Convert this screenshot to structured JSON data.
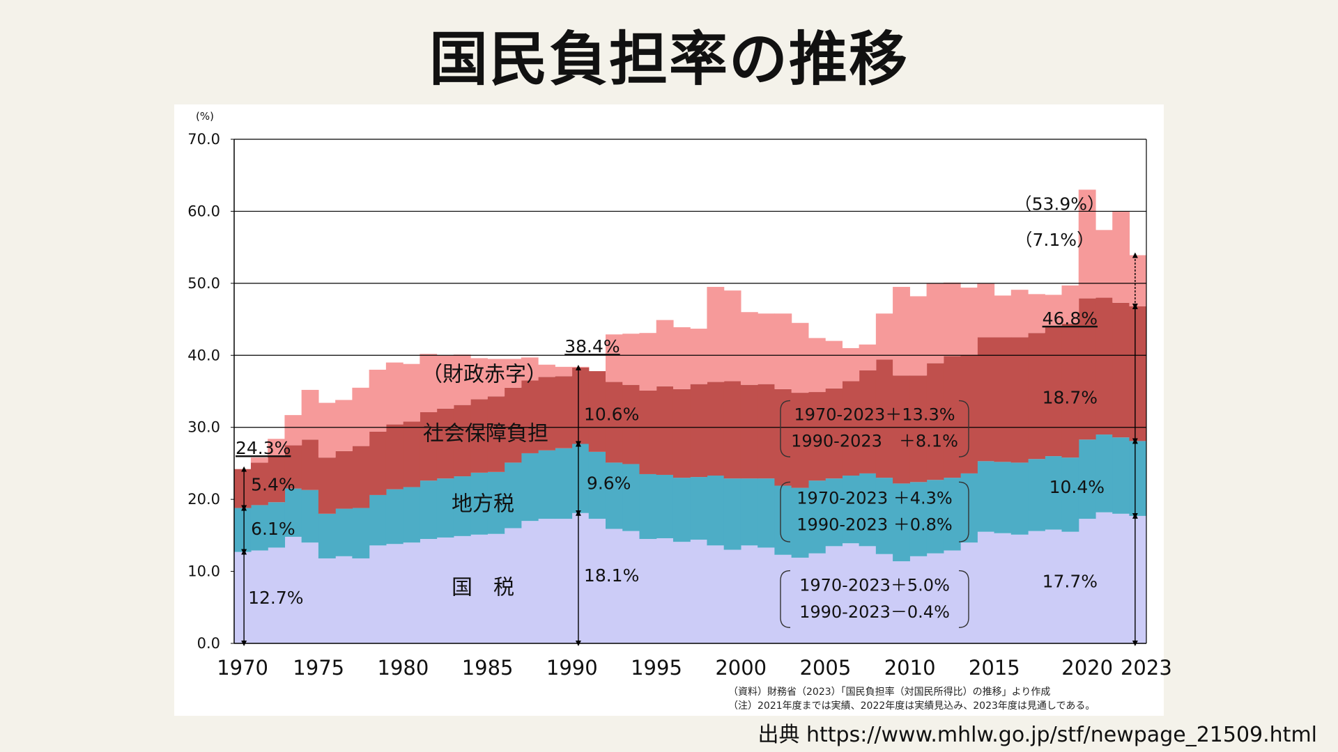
{
  "page": {
    "title": "国民負担率の推移",
    "source": "出典 https://www.mhlw.go.jp/stf/newpage_21509.html"
  },
  "colors": {
    "national_tax": "#ccccf7",
    "local_tax": "#4dadc6",
    "social_security": "#c0504d",
    "fiscal_deficit": "#f69a9a",
    "axis": "#000000",
    "grid": "#000000"
  },
  "chart_data": {
    "type": "area",
    "stacked": true,
    "title": "国民負担率の推移",
    "y_unit_label": "(%)",
    "ylim": [
      0,
      70
    ],
    "yticks": [
      "0.0",
      "10.0",
      "20.0",
      "30.0",
      "40.0",
      "50.0",
      "60.0",
      "70.0"
    ],
    "xticks": [
      "1970",
      "1975",
      "1980",
      "1985",
      "1990",
      "1995",
      "2000",
      "2005",
      "2010",
      "2015",
      "2020",
      "2023"
    ],
    "x": [
      1970,
      1971,
      1972,
      1973,
      1974,
      1975,
      1976,
      1977,
      1978,
      1979,
      1980,
      1981,
      1982,
      1983,
      1984,
      1985,
      1986,
      1987,
      1988,
      1989,
      1990,
      1991,
      1992,
      1993,
      1994,
      1995,
      1996,
      1997,
      1998,
      1999,
      2000,
      2001,
      2002,
      2003,
      2004,
      2005,
      2006,
      2007,
      2008,
      2009,
      2010,
      2011,
      2012,
      2013,
      2014,
      2015,
      2016,
      2017,
      2018,
      2019,
      2020,
      2021,
      2022,
      2023
    ],
    "series": [
      {
        "name": "国　税",
        "key": "national_tax",
        "values": [
          12.7,
          12.9,
          13.3,
          14.8,
          14.0,
          11.8,
          12.1,
          11.8,
          13.6,
          13.8,
          14.0,
          14.5,
          14.7,
          14.9,
          15.1,
          15.2,
          16.0,
          17.0,
          17.3,
          17.3,
          18.1,
          17.3,
          15.9,
          15.6,
          14.5,
          14.6,
          14.1,
          14.4,
          13.6,
          13.0,
          13.6,
          13.3,
          12.3,
          11.9,
          12.5,
          13.5,
          13.9,
          13.5,
          12.4,
          11.4,
          12.1,
          12.5,
          12.9,
          14.0,
          15.5,
          15.3,
          15.1,
          15.6,
          15.8,
          15.5,
          17.3,
          18.2,
          18.0,
          17.7
        ]
      },
      {
        "name": "地方税",
        "key": "local_tax",
        "values": [
          6.1,
          6.3,
          6.3,
          6.7,
          7.3,
          6.2,
          6.6,
          7.0,
          7.0,
          7.6,
          7.7,
          8.1,
          8.2,
          8.3,
          8.6,
          8.6,
          9.1,
          9.4,
          9.5,
          9.8,
          9.6,
          9.3,
          9.2,
          9.3,
          9.0,
          8.8,
          8.9,
          8.7,
          9.7,
          9.9,
          9.3,
          9.6,
          9.6,
          9.7,
          10.1,
          9.4,
          9.4,
          10.1,
          10.6,
          10.8,
          10.3,
          10.2,
          10.1,
          9.6,
          9.8,
          9.9,
          10.0,
          10.0,
          10.2,
          10.3,
          11.0,
          10.8,
          10.6,
          10.4
        ]
      },
      {
        "name": "社会保障負担",
        "key": "social_security",
        "values": [
          5.4,
          5.9,
          6.4,
          6.0,
          7.0,
          7.8,
          8.0,
          8.6,
          8.8,
          9.0,
          9.1,
          9.5,
          9.7,
          9.9,
          10.2,
          10.5,
          10.4,
          10.1,
          10.2,
          10.0,
          10.6,
          11.2,
          11.2,
          11.0,
          11.6,
          12.3,
          12.3,
          12.9,
          13.0,
          13.5,
          13.0,
          13.1,
          13.4,
          13.2,
          12.3,
          12.5,
          13.1,
          14.3,
          16.4,
          15.0,
          14.8,
          16.2,
          16.9,
          16.4,
          17.2,
          17.3,
          17.4,
          17.5,
          18.1,
          18.6,
          19.6,
          19.0,
          18.7,
          18.7
        ]
      },
      {
        "name": "（財政赤字）",
        "key": "fiscal_deficit",
        "values": [
          0.0,
          0.7,
          2.4,
          4.2,
          6.9,
          7.6,
          7.1,
          8.1,
          8.6,
          8.6,
          8.0,
          8.1,
          7.4,
          7.0,
          5.7,
          5.2,
          4.0,
          3.2,
          1.7,
          1.3,
          0.1,
          0.0,
          6.6,
          7.1,
          8.0,
          9.2,
          8.6,
          7.7,
          13.2,
          12.6,
          10.1,
          9.8,
          10.5,
          9.7,
          7.5,
          6.6,
          4.6,
          3.6,
          6.4,
          12.3,
          11.0,
          11.1,
          10.2,
          9.4,
          7.5,
          5.8,
          6.6,
          5.4,
          4.3,
          5.3,
          15.1,
          9.4,
          12.7,
          7.1
        ]
      }
    ],
    "labels": {
      "national_tax": "国　税",
      "local_tax": "地方税",
      "social_security": "社会保障負担",
      "fiscal_deficit": "（財政赤字）"
    },
    "annotations": {
      "y1970_total": "24.3%",
      "y1970_social": "5.4%",
      "y1970_local": "6.1%",
      "y1970_national": "12.7%",
      "y1990_total": "38.4%",
      "y1990_social": "10.6%",
      "y1990_local": "9.6%",
      "y1990_national": "18.1%",
      "y2023_total": "（53.9%）",
      "y2023_deficit": "（7.1%）",
      "y2023_burden": "46.8%",
      "y2023_social": "18.7%",
      "y2023_local": "10.4%",
      "y2023_national": "17.7%",
      "social_change_1": "1970-2023＋13.3%",
      "social_change_2": "1990-2023　＋8.1%",
      "local_change_1": "1970-2023 ＋4.3%",
      "local_change_2": "1990-2023 ＋0.8%",
      "national_change_1": "1970-2023＋5.0%",
      "national_change_2": "1990-2023－0.4%"
    },
    "notes": [
      "（資料）財務省（2023）「国民負担率（対国民所得比）の推移」より作成",
      "（注）2021年度までは実績、2022年度は実績見込み、2023年度は見通しである。"
    ]
  }
}
